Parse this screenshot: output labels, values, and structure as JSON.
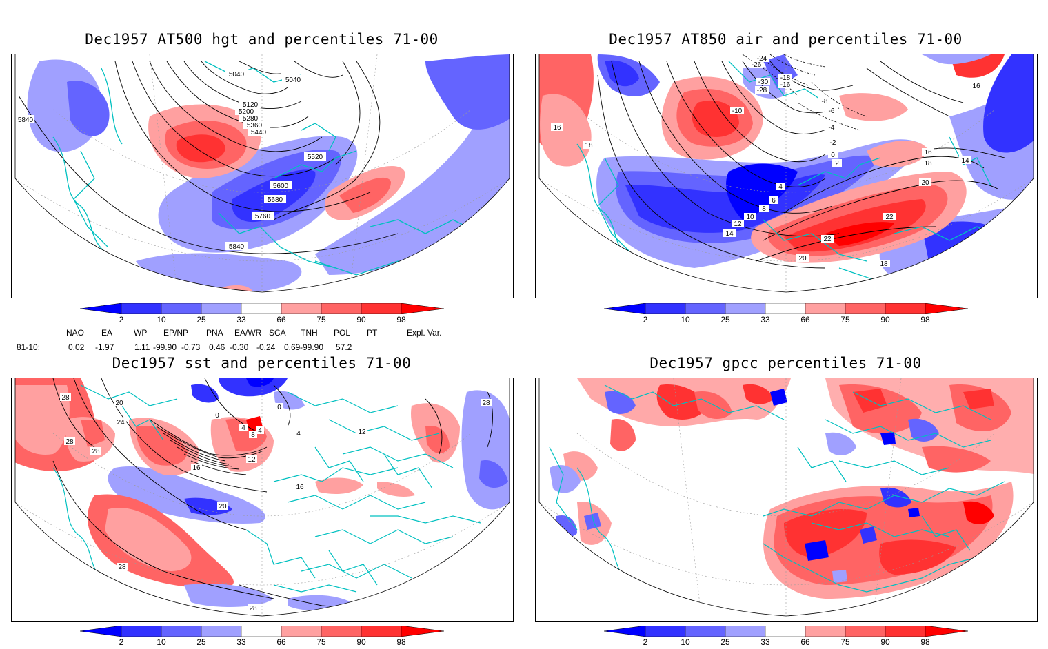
{
  "panels": [
    {
      "title": "Dec1957 AT500 hgt and percentiles 71-00",
      "contour_labels": [
        "5040",
        "5040",
        "5120",
        "5200",
        "5280",
        "5360",
        "5440",
        "5520",
        "5600",
        "5680",
        "5760",
        "5840",
        "5840"
      ]
    },
    {
      "title": "Dec1957 AT850 air and percentiles 71-00",
      "contour_labels": [
        "-24",
        "-26",
        "-18",
        "-16",
        "-30",
        "-28",
        "-10",
        "-8",
        "-6",
        "-4",
        "-2",
        "0",
        "2",
        "4",
        "6",
        "8",
        "10",
        "12",
        "14",
        "16",
        "16",
        "18",
        "18",
        "20",
        "20",
        "22",
        "22",
        "14",
        "16",
        "18"
      ]
    },
    {
      "title": "Dec1957 sst and percentiles 71-00",
      "contour_labels": [
        "28",
        "28",
        "28",
        "20",
        "24",
        "0",
        "0",
        "4",
        "4",
        "8",
        "4",
        "12",
        "16",
        "16",
        "20",
        "28",
        "28",
        "12",
        "28"
      ]
    },
    {
      "title": "Dec1957 gpcc percentiles 71-00",
      "contour_labels": []
    }
  ],
  "colorbar": {
    "ticks": [
      "2",
      "10",
      "25",
      "33",
      "66",
      "75",
      "90",
      "98"
    ],
    "colors": [
      "#0000ff",
      "#3232ff",
      "#6464ff",
      "#a0a0ff",
      "#ffffff",
      "#ffa0a0",
      "#ff6464",
      "#ff3232",
      "#ff0000"
    ]
  },
  "indices": {
    "headers": [
      "NAO",
      "EA",
      "WP",
      "EP/NP",
      "PNA",
      "EA/WR",
      "SCA",
      "TNH",
      "POL",
      "PT",
      "Expl. Var."
    ],
    "row_label": "81-10:",
    "values": [
      "0.02",
      "-1.97",
      "1.11",
      "-99.90",
      "-0.73",
      "0.46",
      "-0.30",
      "-0.24",
      "0.69",
      "-99.90",
      "57.2"
    ]
  }
}
